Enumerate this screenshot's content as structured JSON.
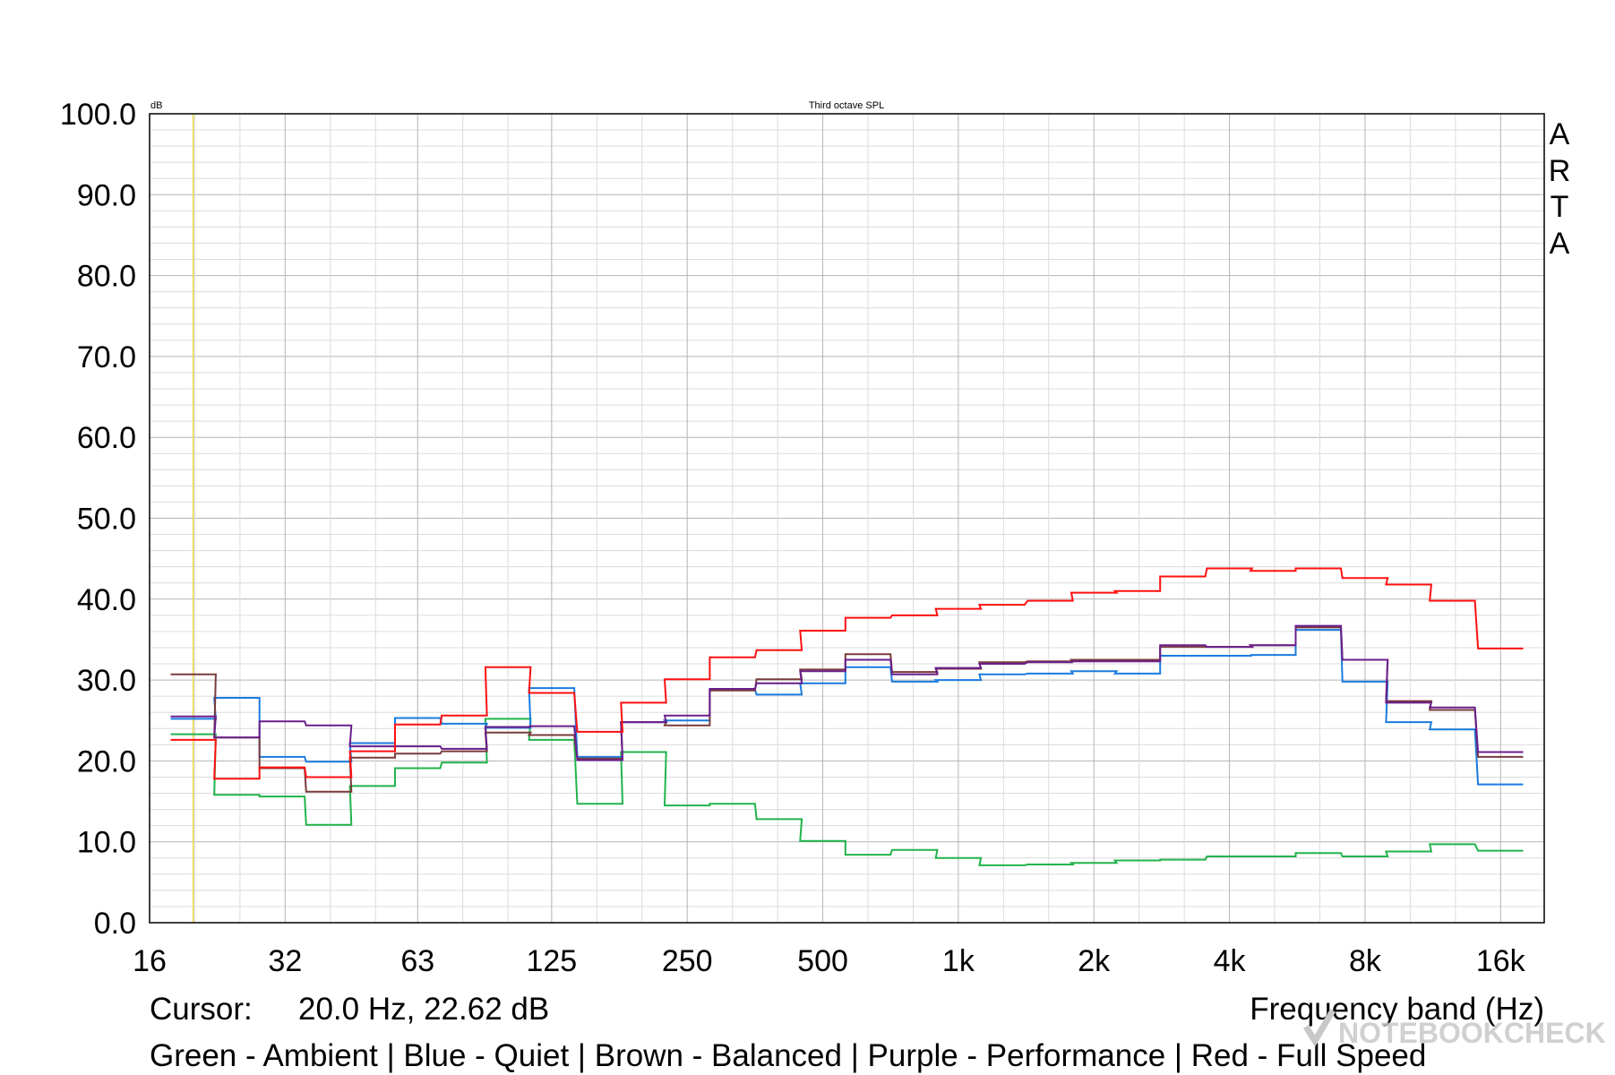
{
  "chart_data": {
    "type": "line",
    "title": "Third octave SPL",
    "ylabel": "dB",
    "xlabel": "Frequency band (Hz)",
    "y_tick_labels": [
      "0.0",
      "10.0",
      "20.0",
      "30.0",
      "40.0",
      "50.0",
      "60.0",
      "70.0",
      "80.0",
      "90.0",
      "100.0"
    ],
    "ylim": [
      0,
      100
    ],
    "x_scale": "log",
    "xlim": [
      16,
      20000
    ],
    "x_tick_labels": [
      "16",
      "32",
      "63",
      "125",
      "250",
      "500",
      "1k",
      "2k",
      "4k",
      "8k",
      "16k"
    ],
    "x_tick_values": [
      16,
      32,
      63,
      125,
      250,
      500,
      1000,
      2000,
      4000,
      8000,
      16000
    ],
    "grid": true,
    "band_centers_hz": [
      20,
      25,
      31.5,
      40,
      50,
      63,
      80,
      100,
      125,
      160,
      200,
      250,
      315,
      400,
      500,
      630,
      800,
      1000,
      1250,
      1600,
      2000,
      2500,
      3150,
      4000,
      5000,
      6300,
      8000,
      10000,
      12500,
      16000
    ],
    "series": [
      {
        "name": "Green - Ambient",
        "color": "#22b34c",
        "values": [
          23.3,
          15.8,
          15.6,
          12.1,
          16.9,
          19.1,
          19.8,
          25.2,
          22.6,
          14.7,
          21.1,
          14.5,
          14.7,
          12.8,
          10.1,
          8.4,
          9.0,
          8.0,
          7.1,
          7.2,
          7.4,
          7.7,
          7.8,
          8.2,
          8.2,
          8.6,
          8.2,
          8.8,
          9.7,
          8.9
        ]
      },
      {
        "name": "Blue - Quiet",
        "color": "#1a7be0",
        "values": [
          25.2,
          27.8,
          20.5,
          19.9,
          22.2,
          25.3,
          24.6,
          24.1,
          29.0,
          20.5,
          24.8,
          25.0,
          28.8,
          28.2,
          29.6,
          31.6,
          29.8,
          30.0,
          30.7,
          30.8,
          31.1,
          30.8,
          33.0,
          33.0,
          33.1,
          36.2,
          29.8,
          24.8,
          23.9,
          17.1
        ]
      },
      {
        "name": "Brown - Balanced",
        "color": "#7a3b3b",
        "values": [
          30.7,
          22.9,
          19.1,
          16.2,
          20.4,
          20.9,
          21.2,
          23.5,
          23.2,
          20.3,
          24.8,
          24.4,
          28.7,
          30.1,
          31.3,
          33.2,
          31.0,
          31.4,
          32.2,
          32.3,
          32.5,
          32.5,
          34.1,
          34.1,
          34.3,
          36.5,
          32.5,
          27.4,
          26.3,
          20.5
        ]
      },
      {
        "name": "Purple - Performance",
        "color": "#6a1e8c",
        "values": [
          25.5,
          22.9,
          24.9,
          24.4,
          21.8,
          21.8,
          21.5,
          24.2,
          24.3,
          20.1,
          24.8,
          25.6,
          28.9,
          29.6,
          31.1,
          32.5,
          30.7,
          31.5,
          32.0,
          32.2,
          32.3,
          32.3,
          34.3,
          34.1,
          34.3,
          36.7,
          32.5,
          27.2,
          26.6,
          21.1
        ]
      },
      {
        "name": "Red - Full Speed",
        "color": "#ff1010",
        "values": [
          22.6,
          17.8,
          19.2,
          18.0,
          21.2,
          24.5,
          25.6,
          31.6,
          28.4,
          23.6,
          27.2,
          30.1,
          32.8,
          33.7,
          36.1,
          37.7,
          38.0,
          38.8,
          39.3,
          39.8,
          40.8,
          41.0,
          42.8,
          43.8,
          43.5,
          43.8,
          42.6,
          41.8,
          39.8,
          33.9
        ]
      }
    ],
    "cursor_x_hz": 20
  },
  "labels": {
    "ylabel_small": "dB",
    "title_small": "Third octave SPL",
    "brand": [
      "A",
      "R",
      "T",
      "A"
    ],
    "cursor_label": "Cursor:",
    "cursor_value": "20.0 Hz, 22.62 dB",
    "xaxis_label": "Frequency band (Hz)",
    "legend_line": "Green - Ambient | Blue - Quiet | Brown - Balanced | Purple - Performance |  Red - Full Speed",
    "watermark": "NOTEBOOKCHECK"
  },
  "colors": {
    "grid": "#b4b4b4",
    "grid_minor": "#dcdcdc",
    "cursor_line": "#e6d84c",
    "axis": "#000000",
    "watermark": "#c8c8c8"
  }
}
